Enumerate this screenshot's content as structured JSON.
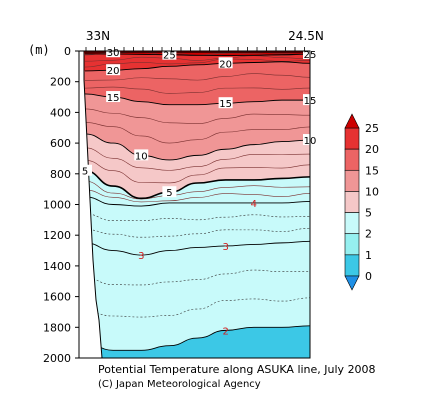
{
  "chart_data": {
    "type": "heatmap",
    "title": "Potential Temperature along ASUKA line, July 2008",
    "credit": "(C) Japan Meteorological Agency",
    "x_axis": {
      "left_label": "33N",
      "right_label": "24.5N"
    },
    "y_axis": {
      "unit_label": "(m)",
      "ylim": [
        2000,
        0
      ],
      "ticks": [
        "0",
        "200",
        "400",
        "600",
        "800",
        "1000",
        "1200",
        "1400",
        "1600",
        "1800",
        "2000"
      ]
    },
    "colorbar": {
      "levels": [
        "0",
        "1",
        "2",
        "5",
        "10",
        "15",
        "20",
        "25"
      ],
      "colors": [
        "#1e90e6",
        "#3cc8e6",
        "#96f0f0",
        "#c8fafa",
        "#f5c8c8",
        "#f09696",
        "#ec6464",
        "#e63232",
        "#cc0000"
      ]
    },
    "isotherms": [
      {
        "temperature": 30,
        "label": "30",
        "depth": [
          8,
          8,
          8,
          8,
          8,
          8,
          8,
          8,
          8
        ]
      },
      {
        "temperature": 25,
        "label": "25",
        "depth": [
          18,
          20,
          22,
          24,
          28,
          30,
          28,
          24,
          20
        ]
      },
      {
        "temperature": 20,
        "label": "20",
        "depth": [
          130,
          125,
          115,
          100,
          90,
          80,
          75,
          70,
          80
        ]
      },
      {
        "temperature": 15,
        "label": "15",
        "depth": [
          280,
          300,
          330,
          350,
          350,
          340,
          330,
          320,
          320
        ]
      },
      {
        "temperature": 10,
        "label": "10",
        "depth": [
          540,
          600,
          680,
          710,
          680,
          640,
          610,
          590,
          580
        ]
      },
      {
        "temperature": 5,
        "label": "5",
        "depth": [
          780,
          880,
          960,
          920,
          860,
          840,
          840,
          830,
          820
        ]
      },
      {
        "temperature": 4,
        "label": "4",
        "depth": [
          950,
          1000,
          1010,
          990,
          990,
          990,
          990,
          990,
          980
        ]
      },
      {
        "temperature": 3,
        "label": "3",
        "depth": [
          1250,
          1300,
          1330,
          1300,
          1280,
          1270,
          1260,
          1250,
          1240
        ]
      },
      {
        "temperature": 2,
        "label": "2",
        "depth": [
          1900,
          1950,
          1950,
          1920,
          1870,
          1820,
          1800,
          1800,
          1790
        ]
      }
    ],
    "grid": false,
    "legend_position": "right"
  }
}
